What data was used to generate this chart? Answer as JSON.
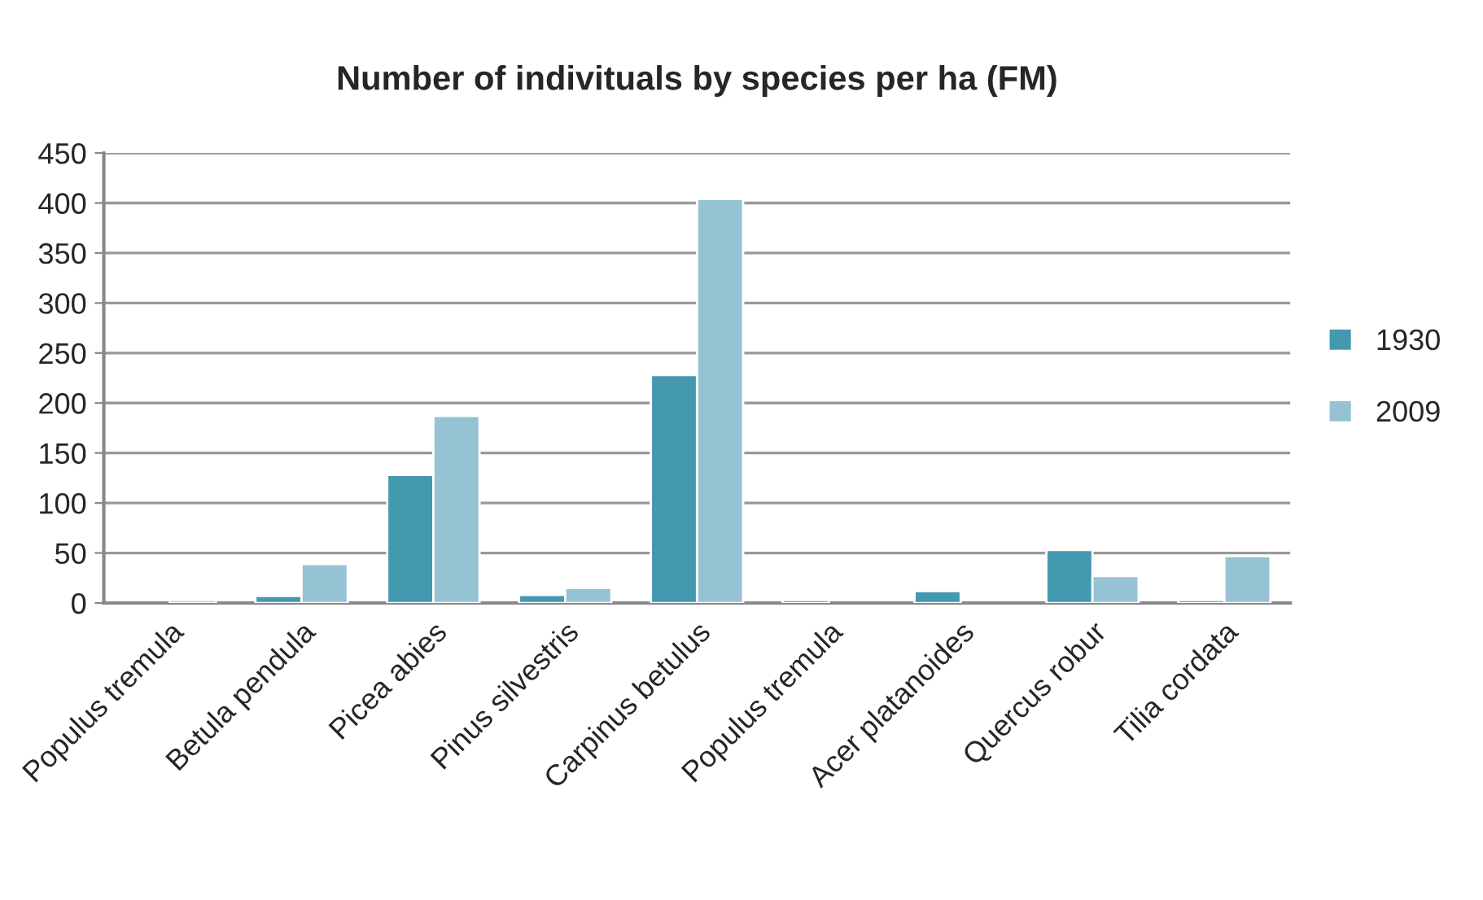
{
  "chart_data": {
    "type": "bar",
    "title": "Number of indivituals by species per ha (FM)",
    "categories": [
      "Populus tremula",
      "Betula pendula",
      "Picea abies",
      "Pinus silvestris",
      "Carpinus betulus",
      "Populus tremula",
      "Acer platanoides",
      "Quercus robur",
      "Tilia cordata"
    ],
    "series": [
      {
        "name": "1930",
        "color": "#4499b0",
        "values": [
          null,
          7,
          128,
          8,
          228,
          3,
          12,
          53,
          3
        ]
      },
      {
        "name": "2009",
        "color": "#95c3d4",
        "values": [
          3,
          39,
          187,
          15,
          404,
          null,
          null,
          27,
          47
        ]
      }
    ],
    "ylim": [
      0,
      450
    ],
    "yticks": [
      0,
      50,
      100,
      150,
      200,
      250,
      300,
      350,
      400,
      450
    ],
    "grid": "y",
    "legend": "right"
  }
}
